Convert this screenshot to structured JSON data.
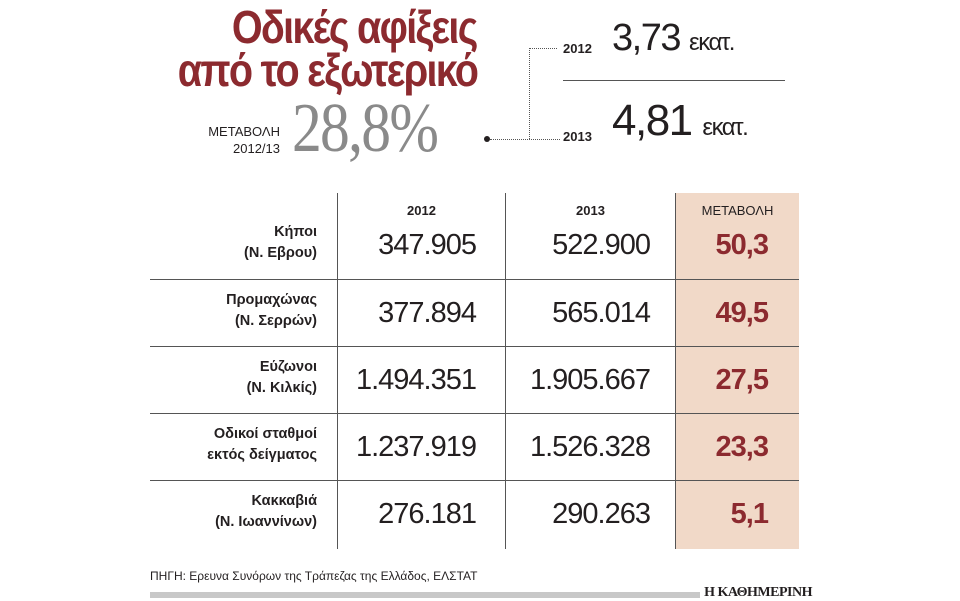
{
  "title_line1": "Οδικές αφίξεις",
  "title_line2": "από το εξωτερικό",
  "summary": {
    "change_label": "ΜΕΤΑΒΟΛΗ",
    "change_period": "2012/13",
    "change_value": "28,8%",
    "y2012": {
      "year": "2012",
      "value": "3,73",
      "unit": "εκατ."
    },
    "y2013": {
      "year": "2013",
      "value": "4,81",
      "unit": "εκατ."
    }
  },
  "colors": {
    "accent": "#8c2a2f",
    "shade": "#f1d9c8"
  },
  "chart_data": {
    "type": "table",
    "title": "Οδικές αφίξεις από το εξωτερικό",
    "columns": [
      "2012",
      "2013",
      "ΜΕΤΑΒΟΛΗ"
    ],
    "rows": [
      {
        "line1": "Κήποι",
        "line2": "(Ν. Εβρου)",
        "v2012": "347.905",
        "v2013": "522.900",
        "change": "50,3"
      },
      {
        "line1": "Προμαχώνας",
        "line2": "(Ν. Σερρών)",
        "v2012": "377.894",
        "v2013": "565.014",
        "change": "49,5"
      },
      {
        "line1": "Εύζωνοι",
        "line2": "(Ν. Κιλκίς)",
        "v2012": "1.494.351",
        "v2013": "1.905.667",
        "change": "27,5"
      },
      {
        "line1": "Οδικοί σταθμοί",
        "line2": "εκτός δείγματος",
        "v2012": "1.237.919",
        "v2013": "1.526.328",
        "change": "23,3"
      },
      {
        "line1": "Κακκαβιά",
        "line2": "(Ν. Ιωαννίνων)",
        "v2012": "276.181",
        "v2013": "290.263",
        "change": "5,1"
      }
    ]
  },
  "source": "ΠΗΓΗ: Ερευνα Συνόρων της Τράπεζας της Ελλάδος, ΕΛΣΤΑΤ",
  "brand": "Η ΚΑΘΗΜΕΡΙΝΗ"
}
